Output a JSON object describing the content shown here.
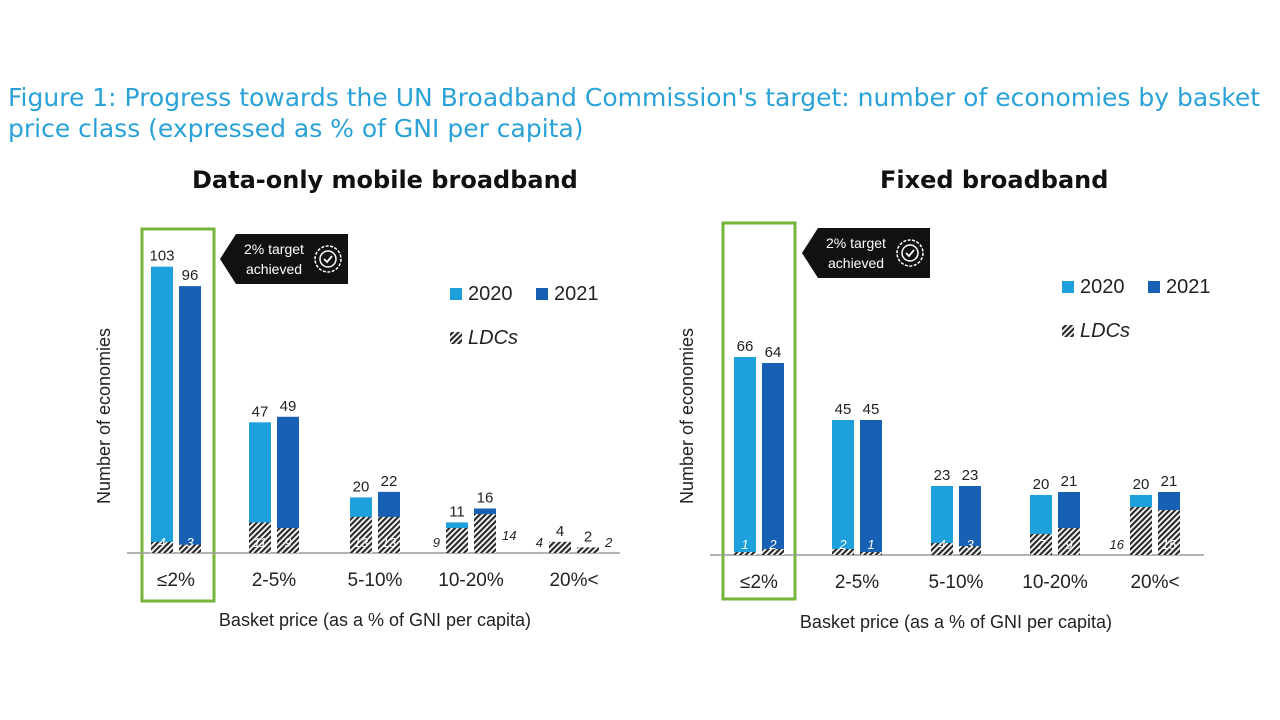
{
  "figure_title": "Figure 1: Progress towards the UN Broadband Commission's target: number of economies by basket price class (expressed as % of GNI per capita)",
  "colors": {
    "y2020": "#1ea0dc",
    "y2021": "#1760b4",
    "ldc": "#2b2b2b",
    "highlight": "#76b43a",
    "title": "#2aa2d8",
    "badge": "#111111"
  },
  "chart_data": [
    {
      "type": "bar",
      "title": "Data-only mobile broadband",
      "xlabel": "Basket price (as a % of GNI per capita)",
      "ylabel": "Number of economies",
      "ylim": [
        0,
        110
      ],
      "categories": [
        "≤2%",
        "2-5%",
        "5-10%",
        "10-20%",
        "20%<"
      ],
      "series": [
        {
          "name": "2020",
          "values": [
            103,
            47,
            20,
            11,
            4
          ],
          "ldc": [
            4,
            11,
            13,
            9,
            4
          ]
        },
        {
          "name": "2021",
          "values": [
            96,
            49,
            22,
            16,
            2
          ],
          "ldc": [
            3,
            9,
            13,
            14,
            2
          ]
        }
      ],
      "ldc_label": "LDCs",
      "badge_lines": [
        "2% target",
        "achieved"
      ],
      "legend_position": "right"
    },
    {
      "type": "bar",
      "title": "Fixed broadband",
      "xlabel": "Basket price (as a % of GNI per capita)",
      "ylabel": "Number of economies",
      "ylim": [
        0,
        72
      ],
      "categories": [
        "≤2%",
        "2-5%",
        "5-10%",
        "10-20%",
        "20%<"
      ],
      "series": [
        {
          "name": "2020",
          "values": [
            66,
            45,
            23,
            20,
            20
          ],
          "ldc": [
            1,
            2,
            4,
            7,
            16
          ]
        },
        {
          "name": "2021",
          "values": [
            64,
            45,
            23,
            21,
            21
          ],
          "ldc": [
            2,
            1,
            3,
            9,
            15
          ]
        }
      ],
      "ldc_label": "LDCs",
      "badge_lines": [
        "2% target",
        "achieved"
      ],
      "legend_position": "right"
    }
  ]
}
